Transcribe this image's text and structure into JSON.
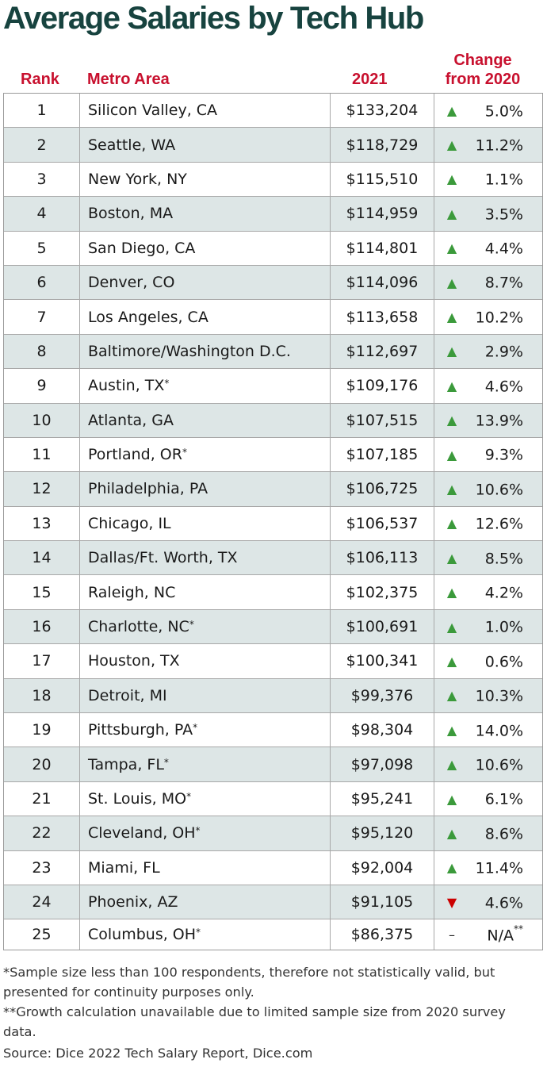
{
  "chart_data": {
    "type": "table",
    "title": "Average Salaries by Tech Hub",
    "columns": [
      "Rank",
      "Metro Area",
      "2021",
      "Change from 2020"
    ],
    "rows": [
      {
        "rank": "1",
        "metro": "Silicon Valley, CA",
        "star": "",
        "salary": "$133,204",
        "direction": "up",
        "change": "5.0%",
        "change_star": ""
      },
      {
        "rank": "2",
        "metro": "Seattle, WA",
        "star": "",
        "salary": "$118,729",
        "direction": "up",
        "change": "11.2%",
        "change_star": ""
      },
      {
        "rank": "3",
        "metro": "New York, NY",
        "star": "",
        "salary": "$115,510",
        "direction": "up",
        "change": "1.1%",
        "change_star": ""
      },
      {
        "rank": "4",
        "metro": "Boston, MA",
        "star": "",
        "salary": "$114,959",
        "direction": "up",
        "change": "3.5%",
        "change_star": ""
      },
      {
        "rank": "5",
        "metro": "San Diego, CA",
        "star": "",
        "salary": "$114,801",
        "direction": "up",
        "change": "4.4%",
        "change_star": ""
      },
      {
        "rank": "6",
        "metro": "Denver, CO",
        "star": "",
        "salary": "$114,096",
        "direction": "up",
        "change": "8.7%",
        "change_star": ""
      },
      {
        "rank": "7",
        "metro": "Los Angeles, CA",
        "star": "",
        "salary": "$113,658",
        "direction": "up",
        "change": "10.2%",
        "change_star": ""
      },
      {
        "rank": "8",
        "metro": "Baltimore/Washington D.C.",
        "star": "",
        "salary": "$112,697",
        "direction": "up",
        "change": "2.9%",
        "change_star": ""
      },
      {
        "rank": "9",
        "metro": "Austin, TX",
        "star": "*",
        "salary": "$109,176",
        "direction": "up",
        "change": "4.6%",
        "change_star": ""
      },
      {
        "rank": "10",
        "metro": "Atlanta, GA",
        "star": "",
        "salary": "$107,515",
        "direction": "up",
        "change": "13.9%",
        "change_star": ""
      },
      {
        "rank": "11",
        "metro": "Portland, OR",
        "star": "*",
        "salary": "$107,185",
        "direction": "up",
        "change": "9.3%",
        "change_star": ""
      },
      {
        "rank": "12",
        "metro": "Philadelphia, PA",
        "star": "",
        "salary": "$106,725",
        "direction": "up",
        "change": "10.6%",
        "change_star": ""
      },
      {
        "rank": "13",
        "metro": "Chicago, IL",
        "star": "",
        "salary": "$106,537",
        "direction": "up",
        "change": "12.6%",
        "change_star": ""
      },
      {
        "rank": "14",
        "metro": "Dallas/Ft. Worth, TX",
        "star": "",
        "salary": "$106,113",
        "direction": "up",
        "change": "8.5%",
        "change_star": ""
      },
      {
        "rank": "15",
        "metro": "Raleigh, NC",
        "star": "",
        "salary": "$102,375",
        "direction": "up",
        "change": "4.2%",
        "change_star": ""
      },
      {
        "rank": "16",
        "metro": "Charlotte, NC",
        "star": "*",
        "salary": "$100,691",
        "direction": "up",
        "change": "1.0%",
        "change_star": ""
      },
      {
        "rank": "17",
        "metro": "Houston, TX",
        "star": "",
        "salary": "$100,341",
        "direction": "up",
        "change": "0.6%",
        "change_star": ""
      },
      {
        "rank": "18",
        "metro": "Detroit, MI",
        "star": "",
        "salary": "$99,376",
        "direction": "up",
        "change": "10.3%",
        "change_star": ""
      },
      {
        "rank": "19",
        "metro": "Pittsburgh, PA",
        "star": "*",
        "salary": "$98,304",
        "direction": "up",
        "change": "14.0%",
        "change_star": ""
      },
      {
        "rank": "20",
        "metro": "Tampa, FL",
        "star": "*",
        "salary": "$97,098",
        "direction": "up",
        "change": "10.6%",
        "change_star": ""
      },
      {
        "rank": "21",
        "metro": "St. Louis, MO",
        "star": "*",
        "salary": "$95,241",
        "direction": "up",
        "change": "6.1%",
        "change_star": ""
      },
      {
        "rank": "22",
        "metro": "Cleveland, OH",
        "star": "*",
        "salary": "$95,120",
        "direction": "up",
        "change": "8.6%",
        "change_star": ""
      },
      {
        "rank": "23",
        "metro": "Miami, FL",
        "star": "",
        "salary": "$92,004",
        "direction": "up",
        "change": "11.4%",
        "change_star": ""
      },
      {
        "rank": "24",
        "metro": "Phoenix, AZ",
        "star": "",
        "salary": "$91,105",
        "direction": "down",
        "change": "4.6%",
        "change_star": ""
      },
      {
        "rank": "25",
        "metro": "Columbus, OH",
        "star": "*",
        "salary": "$86,375",
        "direction": "none",
        "change": "N/A",
        "change_star": "**"
      }
    ]
  },
  "header": {
    "rank": "Rank",
    "metro": "Metro Area",
    "year": "2021",
    "change_line1": "Change",
    "change_line2": "from 2020"
  },
  "footnotes": {
    "note1": "*Sample size less than 100 respondents, therefore not statistically valid, but presented for continuity purposes only.",
    "note2": "**Growth calculation unavailable due to limited sample size from 2020 survey data.",
    "source": "Source: Dice 2022 Tech Salary Report, Dice.com"
  },
  "colors": {
    "title": "#17433f",
    "header": "#c8102e",
    "row_shade": "#dde6e6",
    "up_arrow": "#3b9a3b",
    "down_arrow": "#cc0000"
  },
  "icons": {
    "up": "triangle-up-icon",
    "down": "triangle-down-icon",
    "none": "dash-icon"
  }
}
